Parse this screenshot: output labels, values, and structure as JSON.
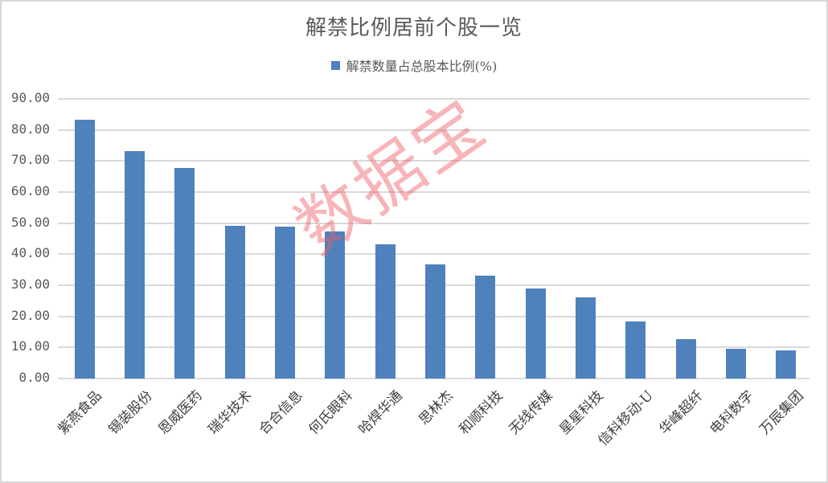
{
  "chart_data": {
    "type": "bar",
    "title": "解禁比例居前个股一览",
    "legend": [
      "解禁数量占总股本比例(%)"
    ],
    "legend_position": "top",
    "xlabel": "",
    "ylabel": "",
    "ylim": [
      0,
      90
    ],
    "yticks": [
      "0.00",
      "10.00",
      "20.00",
      "30.00",
      "40.00",
      "50.00",
      "60.00",
      "70.00",
      "80.00",
      "90.00"
    ],
    "grid": true,
    "bar_color": "#4f81bd",
    "categories": [
      "紫燕食品",
      "锡装股份",
      "恩威医药",
      "瑞华技术",
      "合合信息",
      "何氏眼科",
      "哈焊华通",
      "思林杰",
      "和顺科技",
      "无线传媒",
      "星星科技",
      "信科移动-U",
      "华峰超纤",
      "电科数字",
      "万辰集团"
    ],
    "series": [
      {
        "name": "解禁数量占总股本比例(%)",
        "values": [
          83.3,
          73.2,
          67.8,
          49.1,
          48.9,
          47.3,
          43.2,
          36.7,
          33.1,
          29.0,
          26.1,
          18.4,
          12.7,
          9.6,
          9.1
        ]
      }
    ]
  },
  "watermark": "数据宝"
}
